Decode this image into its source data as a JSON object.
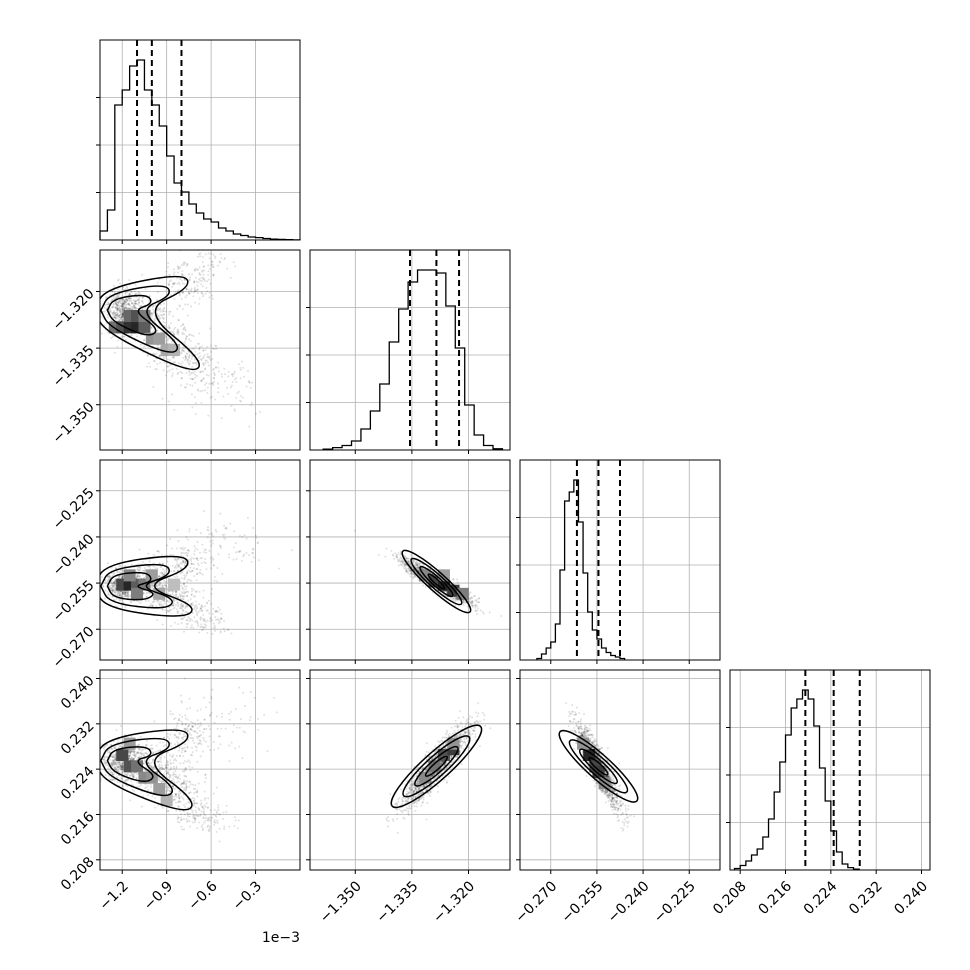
{
  "chart_data": {
    "type": "corner",
    "grid": true,
    "parameters": [
      {
        "range": [
          -1.35,
          0.0
        ],
        "ticks": [
          -1.2,
          -0.9,
          -0.6,
          -0.3
        ],
        "tick_labels": [
          "−1.2",
          "−0.9",
          "−0.6",
          "−0.3"
        ],
        "offset_text": "1e−3",
        "quantiles": [
          -1.1,
          -1.0,
          -0.8
        ],
        "hist": {
          "start": -1.35,
          "width": 0.05,
          "counts": [
            3,
            10,
            45,
            50,
            58,
            60,
            50,
            45,
            38,
            28,
            19,
            16,
            12,
            9,
            7,
            6,
            4,
            3,
            2,
            1.5,
            1,
            0.8,
            0.5,
            0.3,
            0.2,
            0.1,
            0.05
          ]
        }
      },
      {
        "range": [
          -1.362,
          -1.309
        ],
        "ticks": [
          -1.35,
          -1.335,
          -1.32
        ],
        "tick_labels": [
          "−1.350",
          "−1.335",
          "−1.320"
        ],
        "quantiles": [
          -1.3355,
          -1.3285,
          -1.3225
        ],
        "hist": {
          "start": -1.3585,
          "width": 0.0025,
          "counts": [
            0.3,
            0.8,
            1.5,
            3,
            7,
            13,
            22,
            36,
            47,
            56,
            60,
            60,
            59,
            48,
            34,
            15,
            5,
            1.5,
            0.4
          ]
        }
      },
      {
        "range": [
          -0.28,
          -0.215
        ],
        "ticks": [
          -0.27,
          -0.255,
          -0.24,
          -0.225
        ],
        "tick_labels": [
          "−0.270",
          "−0.255",
          "−0.240",
          "−0.225"
        ],
        "quantiles": [
          -0.2615,
          -0.2545,
          -0.2475
        ],
        "hist": {
          "start": -0.2745,
          "width": 0.0015,
          "counts": [
            0.5,
            2,
            4,
            6,
            12,
            30,
            53,
            56,
            60,
            46,
            29,
            16,
            10,
            7,
            4,
            2.5,
            1.5,
            1,
            0.5
          ]
        }
      },
      {
        "range": [
          0.2062,
          0.2415
        ],
        "ticks": [
          0.208,
          0.216,
          0.224,
          0.232,
          0.24
        ],
        "tick_labels": [
          "0.208",
          "0.216",
          "0.224",
          "0.232",
          "0.240"
        ],
        "quantiles": [
          0.2195,
          0.2245,
          0.2291
        ],
        "hist": {
          "start": 0.207,
          "width": 0.001,
          "counts": [
            0.5,
            1.5,
            3,
            5,
            7,
            11,
            17,
            26,
            36,
            45,
            54,
            57,
            60,
            57,
            48,
            34,
            23,
            13,
            6,
            2,
            0.8,
            0.3
          ]
        }
      }
    ],
    "joint": [
      {
        "x_param": 0,
        "y_param": 1,
        "samples": [
          {
            "x": -1.2,
            "y": -1.325,
            "sx": 0.06,
            "sy": 0.003,
            "w": 0.34
          },
          {
            "x": -1.05,
            "y": -1.327,
            "sx": 0.08,
            "sy": 0.003,
            "w": 0.22
          },
          {
            "x": -0.88,
            "y": -1.334,
            "sx": 0.08,
            "sy": 0.004,
            "w": 0.16
          },
          {
            "x": -0.7,
            "y": -1.339,
            "sx": 0.08,
            "sy": 0.003,
            "w": 0.1
          },
          {
            "x": -0.78,
            "y": -1.318,
            "sx": 0.08,
            "sy": 0.003,
            "w": 0.1
          },
          {
            "x": -0.55,
            "y": -1.344,
            "sx": 0.15,
            "sy": 0.004,
            "w": 0.05
          },
          {
            "x": -0.6,
            "y": -1.313,
            "sx": 0.08,
            "sy": 0.003,
            "w": 0.03
          }
        ],
        "heat": [
          {
            "x": -1.25,
            "y": -1.3295,
            "v": 0.65
          },
          {
            "x": -1.2,
            "y": -1.3295,
            "v": 0.8
          },
          {
            "x": -1.15,
            "y": -1.3295,
            "v": 0.95
          },
          {
            "x": -1.1,
            "y": -1.3295,
            "v": 1.0
          },
          {
            "x": -1.05,
            "y": -1.3295,
            "v": 0.75
          },
          {
            "x": -1.15,
            "y": -1.3265,
            "v": 0.7
          },
          {
            "x": -1.1,
            "y": -1.3265,
            "v": 0.8
          },
          {
            "x": -1.05,
            "y": -1.3265,
            "v": 0.6
          },
          {
            "x": -1.0,
            "y": -1.3325,
            "v": 0.5
          },
          {
            "x": -0.95,
            "y": -1.3325,
            "v": 0.45
          },
          {
            "x": -0.9,
            "y": -1.3355,
            "v": 0.4
          },
          {
            "x": -0.85,
            "y": -1.3355,
            "v": 0.35
          }
        ]
      },
      {
        "x_param": 0,
        "y_param": 2,
        "samples": [
          {
            "x": -1.2,
            "y": -0.256,
            "sx": 0.06,
            "sy": 0.0025,
            "w": 0.34
          },
          {
            "x": -1.05,
            "y": -0.254,
            "sx": 0.08,
            "sy": 0.003,
            "w": 0.22
          },
          {
            "x": -0.88,
            "y": -0.258,
            "sx": 0.08,
            "sy": 0.003,
            "w": 0.14
          },
          {
            "x": -0.75,
            "y": -0.263,
            "sx": 0.08,
            "sy": 0.003,
            "w": 0.1
          },
          {
            "x": -0.78,
            "y": -0.249,
            "sx": 0.08,
            "sy": 0.003,
            "w": 0.1
          },
          {
            "x": -0.55,
            "y": -0.242,
            "sx": 0.15,
            "sy": 0.004,
            "w": 0.06
          },
          {
            "x": -0.6,
            "y": -0.268,
            "sx": 0.08,
            "sy": 0.002,
            "w": 0.04
          }
        ],
        "heat": [
          {
            "x": -1.2,
            "y": -0.2555,
            "v": 0.85
          },
          {
            "x": -1.15,
            "y": -0.2555,
            "v": 1.0
          },
          {
            "x": -1.1,
            "y": -0.2555,
            "v": 0.75
          },
          {
            "x": -1.05,
            "y": -0.2555,
            "v": 0.6
          },
          {
            "x": -1.15,
            "y": -0.2525,
            "v": 0.55
          },
          {
            "x": -1.1,
            "y": -0.2585,
            "v": 0.6
          },
          {
            "x": -1.0,
            "y": -0.2525,
            "v": 0.45
          },
          {
            "x": -0.95,
            "y": -0.2585,
            "v": 0.4
          },
          {
            "x": -0.85,
            "y": -0.2555,
            "v": 0.3
          }
        ]
      },
      {
        "x_param": 1,
        "y_param": 2,
        "samples": [
          {
            "x": -1.3285,
            "y": -0.2545,
            "sx": 0.0045,
            "sy": 0.0035,
            "rho": -0.92,
            "w": 1.0
          }
        ],
        "heat": [
          {
            "x": -1.3315,
            "y": -0.2525,
            "v": 0.55
          },
          {
            "x": -1.329,
            "y": -0.2545,
            "v": 0.85
          },
          {
            "x": -1.3265,
            "y": -0.2555,
            "v": 1.0
          },
          {
            "x": -1.324,
            "y": -0.2575,
            "v": 0.9
          },
          {
            "x": -1.3215,
            "y": -0.2585,
            "v": 0.6
          },
          {
            "x": -1.3265,
            "y": -0.2525,
            "v": 0.45
          }
        ]
      },
      {
        "x_param": 0,
        "y_param": 3,
        "samples": [
          {
            "x": -1.2,
            "y": 0.2255,
            "sx": 0.06,
            "sy": 0.0018,
            "w": 0.34
          },
          {
            "x": -1.05,
            "y": 0.2245,
            "sx": 0.08,
            "sy": 0.002,
            "w": 0.22
          },
          {
            "x": -0.88,
            "y": 0.2215,
            "sx": 0.08,
            "sy": 0.002,
            "w": 0.14
          },
          {
            "x": -0.75,
            "y": 0.218,
            "sx": 0.08,
            "sy": 0.002,
            "w": 0.1
          },
          {
            "x": -0.78,
            "y": 0.2295,
            "sx": 0.08,
            "sy": 0.002,
            "w": 0.1
          },
          {
            "x": -0.55,
            "y": 0.2325,
            "sx": 0.15,
            "sy": 0.003,
            "w": 0.06
          },
          {
            "x": -0.6,
            "y": 0.215,
            "sx": 0.08,
            "sy": 0.0015,
            "w": 0.04
          }
        ],
        "heat": [
          {
            "x": -1.2,
            "y": 0.2265,
            "v": 0.85
          },
          {
            "x": -1.15,
            "y": 0.2245,
            "v": 0.8
          },
          {
            "x": -1.1,
            "y": 0.2245,
            "v": 0.65
          },
          {
            "x": -1.05,
            "y": 0.2225,
            "v": 0.55
          },
          {
            "x": -1.0,
            "y": 0.2225,
            "v": 0.5
          },
          {
            "x": -0.95,
            "y": 0.2205,
            "v": 0.45
          },
          {
            "x": -0.9,
            "y": 0.2185,
            "v": 0.35
          },
          {
            "x": -1.15,
            "y": 0.2285,
            "v": 0.45
          }
        ]
      },
      {
        "x_param": 1,
        "y_param": 3,
        "samples": [
          {
            "x": -1.3285,
            "y": 0.2245,
            "sx": 0.0045,
            "sy": 0.0036,
            "rho": 0.9,
            "w": 1.0
          }
        ],
        "heat": [
          {
            "x": -1.3265,
            "y": 0.2265,
            "v": 0.8
          },
          {
            "x": -1.324,
            "y": 0.2275,
            "v": 0.9
          },
          {
            "x": -1.329,
            "y": 0.2245,
            "v": 0.65
          },
          {
            "x": -1.3315,
            "y": 0.2225,
            "v": 0.55
          },
          {
            "x": -1.324,
            "y": 0.2285,
            "v": 0.5
          }
        ]
      },
      {
        "x_param": 2,
        "y_param": 3,
        "samples": [
          {
            "x": -0.2545,
            "y": 0.2245,
            "sx": 0.0035,
            "sy": 0.0036,
            "rho": -0.9,
            "w": 1.0
          }
        ],
        "heat": [
          {
            "x": -0.2575,
            "y": 0.2265,
            "v": 1.0
          },
          {
            "x": -0.2555,
            "y": 0.2245,
            "v": 0.85
          },
          {
            "x": -0.2545,
            "y": 0.2235,
            "v": 0.9
          },
          {
            "x": -0.2525,
            "y": 0.2215,
            "v": 0.55
          },
          {
            "x": -0.2595,
            "y": 0.2285,
            "v": 0.5
          }
        ]
      }
    ]
  }
}
